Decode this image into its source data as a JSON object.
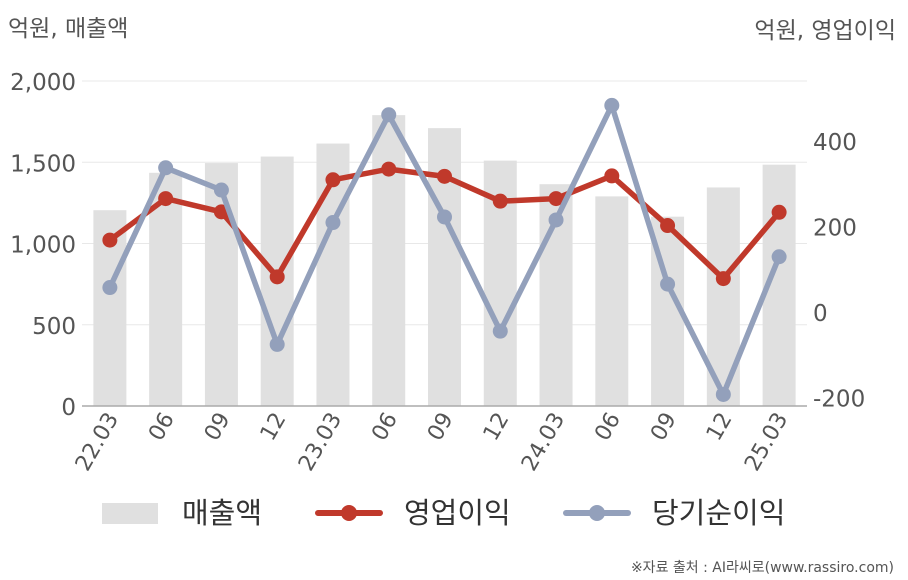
{
  "chart_data": {
    "type": "bar",
    "left_unit_label": "억원, 매출액",
    "right_unit_label": "억원, 영업이익",
    "categories": [
      "22.03",
      "06",
      "09",
      "12",
      "23.03",
      "06",
      "09",
      "12",
      "24.03",
      "06",
      "09",
      "12",
      "25.03"
    ],
    "left_axis": {
      "ylim": [
        0,
        2000
      ],
      "ticks": [
        "0",
        "500",
        "1,000",
        "1,500",
        "2,000"
      ]
    },
    "right_axis": {
      "ylim": [
        -220,
        540
      ],
      "ticks": [
        "-200",
        "0",
        "200",
        "400"
      ]
    },
    "grid": true,
    "legend_position": "bottom",
    "series": [
      {
        "name": "매출액",
        "type": "bar",
        "axis": "left",
        "color": "#e0e0e0",
        "values": [
          1205,
          1435,
          1495,
          1535,
          1615,
          1790,
          1710,
          1510,
          1365,
          1290,
          1165,
          1345,
          1485
        ]
      },
      {
        "name": "영업이익",
        "type": "line",
        "axis": "right",
        "color": "#c0392b",
        "values": [
          168,
          265,
          234,
          82,
          309,
          334,
          317,
          259,
          265,
          318,
          202,
          78,
          233
        ]
      },
      {
        "name": "당기순이익",
        "type": "line",
        "axis": "right",
        "color": "#93a0bb",
        "values": [
          57,
          337,
          285,
          -76,
          209,
          461,
          222,
          -45,
          215,
          483,
          65,
          -193,
          129
        ]
      }
    ]
  },
  "source_note": "※자료 출처 : AI라씨로(www.rassiro.com)"
}
